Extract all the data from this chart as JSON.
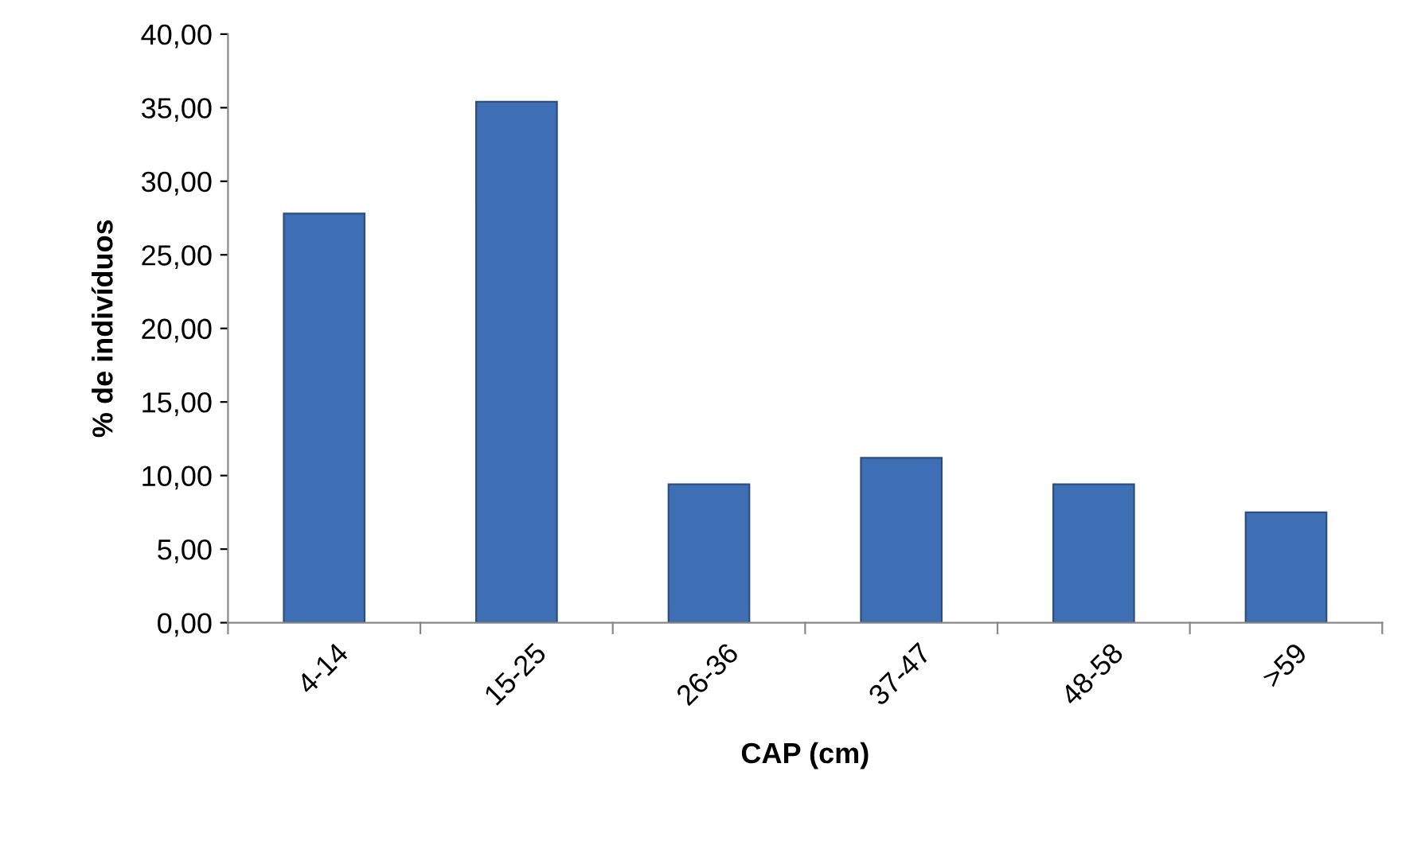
{
  "chart_data": {
    "type": "bar",
    "xlabel": "CAP (cm)",
    "ylabel": "% de indivíduos",
    "categories": [
      "4-14",
      "15-25",
      "26-36",
      "37-47",
      "48-58",
      ">59"
    ],
    "values": [
      27.8,
      35.4,
      9.4,
      11.2,
      9.4,
      7.5
    ],
    "color": "#3e6fb4",
    "ylim": [
      0,
      40
    ],
    "yticks": [
      {
        "value": 0,
        "label": "0,00"
      },
      {
        "value": 5,
        "label": "5,00"
      },
      {
        "value": 10,
        "label": "10,00"
      },
      {
        "value": 15,
        "label": "15,00"
      },
      {
        "value": 20,
        "label": "20,00"
      },
      {
        "value": 25,
        "label": "25,00"
      },
      {
        "value": 30,
        "label": "30,00"
      },
      {
        "value": 35,
        "label": "35,00"
      },
      {
        "value": 40,
        "label": "40,00"
      }
    ],
    "grid": false,
    "legend": false
  }
}
